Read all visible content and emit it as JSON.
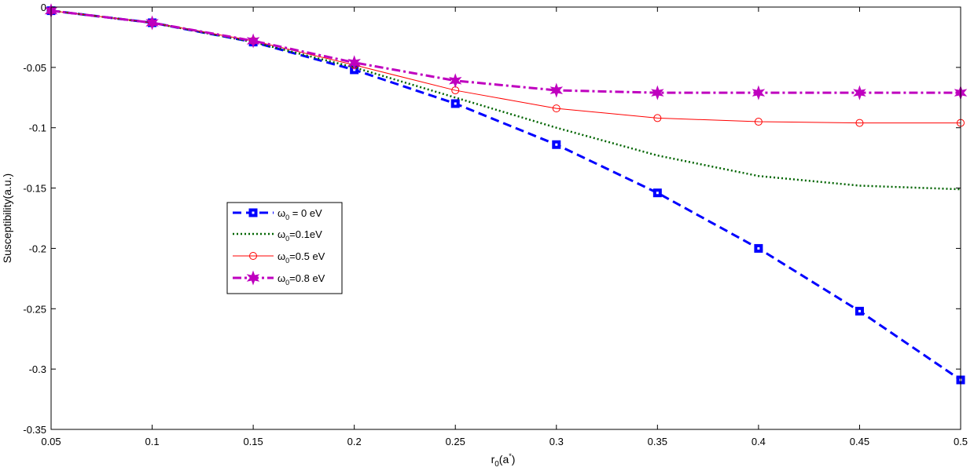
{
  "chart_data": {
    "type": "line",
    "title": "",
    "xlabel_main": "r",
    "xlabel_sub": "0",
    "xlabel_paren": "(a",
    "xlabel_sup": "*",
    "xlabel_close": ")",
    "ylabel": "Susceptibility(a.u.)",
    "xlim": [
      0.05,
      0.5
    ],
    "ylim": [
      -0.35,
      0
    ],
    "xticks": [
      0.05,
      0.1,
      0.15,
      0.2,
      0.25,
      0.3,
      0.35,
      0.4,
      0.45,
      0.5
    ],
    "xtick_labels": [
      "0.05",
      "0.1",
      "0.15",
      "0.2",
      "0.25",
      "0.3",
      "0.35",
      "0.4",
      "0.45",
      "0.5"
    ],
    "yticks": [
      0,
      -0.05,
      -0.1,
      -0.15,
      -0.2,
      -0.25,
      -0.3,
      -0.35
    ],
    "ytick_labels": [
      "0",
      "-0.05",
      "-0.1",
      "-0.15",
      "-0.2",
      "-0.25",
      "-0.3",
      "-0.35"
    ],
    "grid": false,
    "legend_position": "center-left",
    "x": [
      0.05,
      0.1,
      0.15,
      0.2,
      0.25,
      0.3,
      0.35,
      0.4,
      0.45,
      0.5
    ],
    "series": [
      {
        "name": "ω0 = 0 eV",
        "legend_symbol": "ω",
        "legend_sub": "0",
        "legend_rest": " = 0 eV",
        "color": "#0000ff",
        "style": "dashed",
        "marker": "square",
        "values": [
          -0.003,
          -0.013,
          -0.029,
          -0.052,
          -0.08,
          -0.114,
          -0.154,
          -0.2,
          -0.252,
          -0.309
        ]
      },
      {
        "name": "ω0=0.1eV",
        "legend_symbol": "ω",
        "legend_sub": "0",
        "legend_rest": "=0.1eV",
        "color": "#006400",
        "style": "dotted",
        "marker": "none",
        "values": [
          -0.003,
          -0.013,
          -0.029,
          -0.05,
          -0.075,
          -0.1,
          -0.123,
          -0.14,
          -0.148,
          -0.151
        ]
      },
      {
        "name": "ω0=0.5 eV",
        "legend_symbol": "ω",
        "legend_sub": "0",
        "legend_rest": "=0.5 eV",
        "color": "#ff0000",
        "style": "solid",
        "marker": "circle",
        "values": [
          -0.003,
          -0.013,
          -0.028,
          -0.048,
          -0.069,
          -0.084,
          -0.092,
          -0.095,
          -0.096,
          -0.096
        ]
      },
      {
        "name": "ω0=0.8 eV",
        "legend_symbol": "ω",
        "legend_sub": "0",
        "legend_rest": "=0.8 eV",
        "color": "#bf00bf",
        "style": "dashdot",
        "marker": "star",
        "values": [
          -0.003,
          -0.013,
          -0.028,
          -0.046,
          -0.061,
          -0.069,
          -0.071,
          -0.071,
          -0.071,
          -0.071
        ]
      }
    ]
  }
}
